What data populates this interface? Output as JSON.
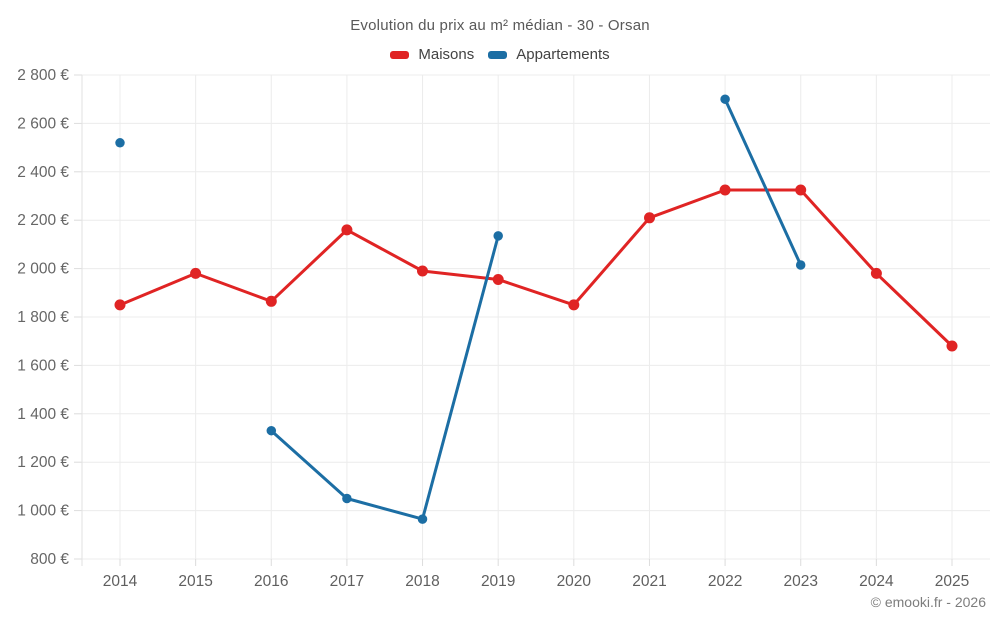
{
  "title": "Evolution du prix au m² médian - 30 - Orsan",
  "legend": [
    {
      "label": "Maisons",
      "color": "#e02424"
    },
    {
      "label": "Appartements",
      "color": "#1c6ea4"
    }
  ],
  "attribution": "© emooki.fr - 2026",
  "chart_data": {
    "type": "line",
    "title": "Evolution du prix au m² médian - 30 - Orsan",
    "categories": [
      "2014",
      "2015",
      "2016",
      "2017",
      "2018",
      "2019",
      "2020",
      "2021",
      "2022",
      "2023",
      "2024",
      "2025"
    ],
    "series": [
      {
        "name": "Maisons",
        "color": "#e02424",
        "marker_radius": 5.5,
        "values": [
          1850,
          1980,
          1865,
          2160,
          1990,
          1955,
          1850,
          2210,
          2325,
          2325,
          1980,
          1680
        ]
      },
      {
        "name": "Appartements",
        "color": "#1c6ea4",
        "marker_radius": 4.75,
        "values": [
          2520,
          null,
          1330,
          1050,
          965,
          2135,
          null,
          null,
          2700,
          2015,
          null,
          null
        ]
      }
    ],
    "xlabel": "",
    "ylabel": "",
    "ylim": [
      800,
      2800
    ],
    "ytick_step": 200,
    "ytick_labels": [
      "800 €",
      "1 000 €",
      "1 200 €",
      "1 400 €",
      "1 600 €",
      "1 800 €",
      "2 000 €",
      "2 200 €",
      "2 400 €",
      "2 600 €",
      "2 800 €"
    ],
    "unit": "€",
    "grid": true,
    "legend_position": "top"
  }
}
